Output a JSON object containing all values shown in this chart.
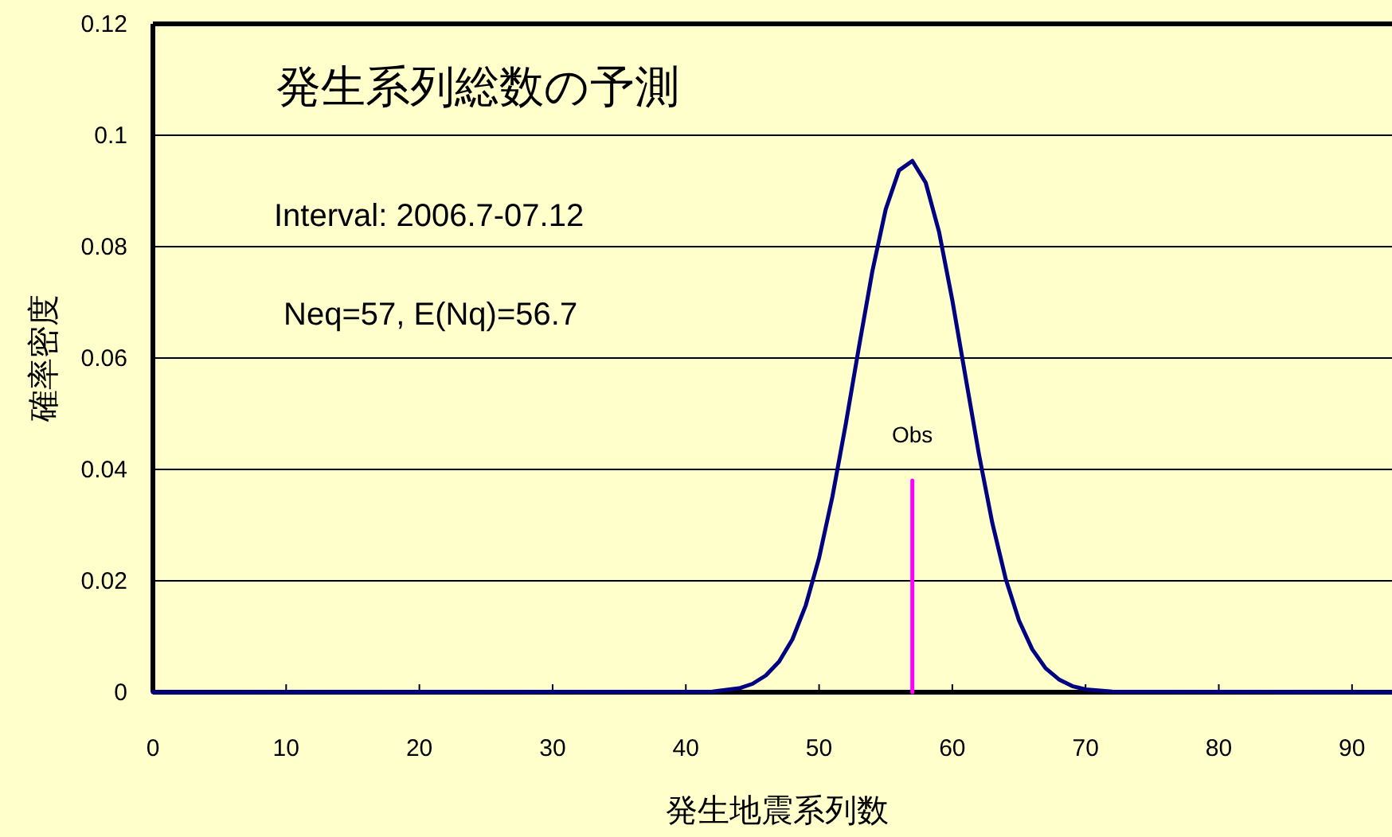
{
  "chart_data": {
    "type": "line",
    "title": "発生系列総数の予測",
    "xlabel": "発生地震系列数",
    "ylabel": "確率密度",
    "annotations": [
      "Interval: 2006.7-07.12",
      "Neq=57, E(Nq)=56.7"
    ],
    "xlim": [
      0,
      93
    ],
    "xticks": [
      0,
      10,
      20,
      30,
      40,
      50,
      60,
      70,
      80,
      90
    ],
    "ylim": [
      0,
      0.12
    ],
    "yticks": [
      0,
      0.02,
      0.04,
      0.06,
      0.08,
      0.1,
      0.12
    ],
    "grid": "y",
    "marker": "none",
    "line_style": "solid",
    "series": [
      {
        "color": "#000080",
        "x": [
          0,
          42,
          44,
          45,
          46,
          47,
          48,
          49,
          50,
          51,
          52,
          53,
          54,
          55,
          56,
          57,
          58,
          59,
          60,
          61,
          62,
          63,
          64,
          65,
          66,
          67,
          68,
          69,
          70,
          72,
          93
        ],
        "values": [
          0,
          0.0001,
          0.0007,
          0.0015,
          0.003,
          0.0055,
          0.0095,
          0.0156,
          0.0241,
          0.0351,
          0.0481,
          0.0621,
          0.0756,
          0.0867,
          0.0937,
          0.0954,
          0.0915,
          0.0827,
          0.0704,
          0.0565,
          0.0427,
          0.0304,
          0.0204,
          0.0129,
          0.0077,
          0.0043,
          0.0023,
          0.0011,
          0.0005,
          0.0001,
          0
        ]
      },
      {
        "name": "Obs",
        "color": "#ff00ff",
        "x": [
          57,
          57
        ],
        "values": [
          0,
          0.038
        ]
      }
    ]
  }
}
